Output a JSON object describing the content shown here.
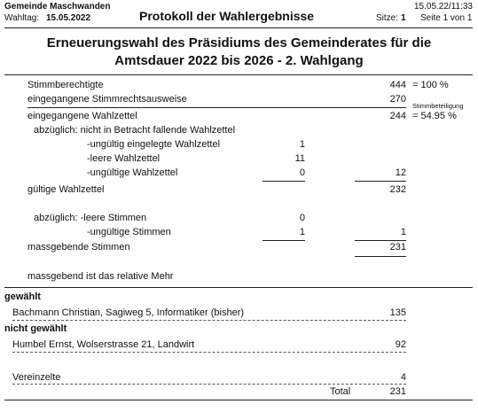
{
  "header": {
    "municipality": "Gemeinde Maschwanden",
    "voting_day_label": "Wahltag:",
    "voting_day_value": "15.05.2022",
    "title": "Protokoll der Wahlergebnisse",
    "timestamp": "15.05.22/11:33",
    "seats_label": "Sitze:",
    "seats_value": "1",
    "page_info": "Seite 1 von 1"
  },
  "election_title": {
    "line1": "Erneuerungswahl des Präsidiums des Gemeinderates für die",
    "line2": "Amtsdauer 2022 bis 2026 - 2. Wahlgang"
  },
  "stats": {
    "eligible_label": "Stimmberechtigte",
    "eligible_value": "444",
    "eligible_pct": "= 100 %",
    "received_ids_label": "eingegangene Stimmrechtsausweise",
    "received_ids_value": "270",
    "turnout_label": "Stimmbeteiligung",
    "received_ballots_label": "eingegangene Wahlzettel",
    "received_ballots_value": "244",
    "received_ballots_pct": "= 54.95 %",
    "deduction_label": "abzüglich: nicht in Betracht fallende Wahlzettel",
    "invalid_inserted_label": "-ungültig eingelegte Wahlzettel",
    "invalid_inserted_value": "1",
    "empty_ballots_label": "-leere Wahlzettel",
    "empty_ballots_value": "11",
    "invalid_ballots_label": "-ungültige Wahlzettel",
    "invalid_ballots_value": "0",
    "deduction_total": "12",
    "valid_ballots_label": "gültige Wahlzettel",
    "valid_ballots_value": "232",
    "deduction2_label": "abzüglich: -leere Stimmen",
    "empty_votes_value": "0",
    "invalid_votes_label": "-ungültige Stimmen",
    "invalid_votes_value": "1",
    "deduction2_total": "1",
    "decisive_votes_label": "massgebende Stimmen",
    "decisive_votes_value": "231",
    "majority_note": "massgebend ist das relative Mehr"
  },
  "results": {
    "elected_heading": "gewählt",
    "elected": [
      {
        "name": "Bachmann Christian, Sagiweg 5, Informatiker (bisher)",
        "votes": "135"
      }
    ],
    "not_elected_heading": "nicht gewählt",
    "not_elected": [
      {
        "name": "Humbel Ernst, Wolserstrasse 21, Landwirt",
        "votes": "92"
      }
    ],
    "scattered_label": "Vereinzelte",
    "scattered_value": "4",
    "total_label": "Total",
    "total_value": "231"
  }
}
